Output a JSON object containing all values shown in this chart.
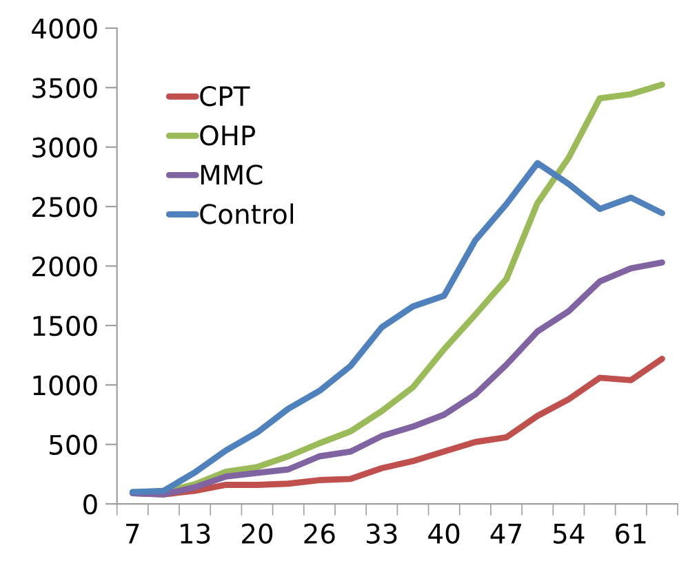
{
  "chart_data": {
    "type": "line",
    "categories": [
      "7",
      null,
      "13",
      null,
      "20",
      null,
      "26",
      null,
      "33",
      null,
      "40",
      null,
      "47",
      null,
      "54",
      null,
      "61",
      null
    ],
    "series": [
      {
        "name": "CPT",
        "color": "#c0504d",
        "values": [
          90,
          80,
          110,
          160,
          160,
          170,
          200,
          210,
          300,
          360,
          440,
          520,
          560,
          740,
          880,
          1060,
          1040,
          1220
        ]
      },
      {
        "name": "OHP",
        "color": "#9bbb59",
        "values": [
          100,
          100,
          165,
          270,
          310,
          400,
          510,
          610,
          780,
          980,
          1300,
          1590,
          1890,
          2530,
          2910,
          3410,
          3445,
          3525
        ]
      },
      {
        "name": "MMC",
        "color": "#8064a2",
        "values": [
          90,
          80,
          140,
          230,
          260,
          290,
          400,
          440,
          570,
          650,
          750,
          920,
          1170,
          1450,
          1620,
          1870,
          1980,
          2030
        ]
      },
      {
        "name": "Control",
        "color": "#4f81bd",
        "values": [
          100,
          110,
          265,
          450,
          600,
          800,
          950,
          1160,
          1485,
          1660,
          1750,
          2215,
          2520,
          2865,
          2690,
          2480,
          2575,
          2445
        ]
      }
    ],
    "ylim": [
      0,
      4000
    ],
    "yticks": [
      0,
      500,
      1000,
      1500,
      2000,
      2500,
      3000,
      3500,
      4000
    ],
    "grid": false,
    "legend": "top left",
    "marker": "none",
    "line_style": "solid"
  }
}
